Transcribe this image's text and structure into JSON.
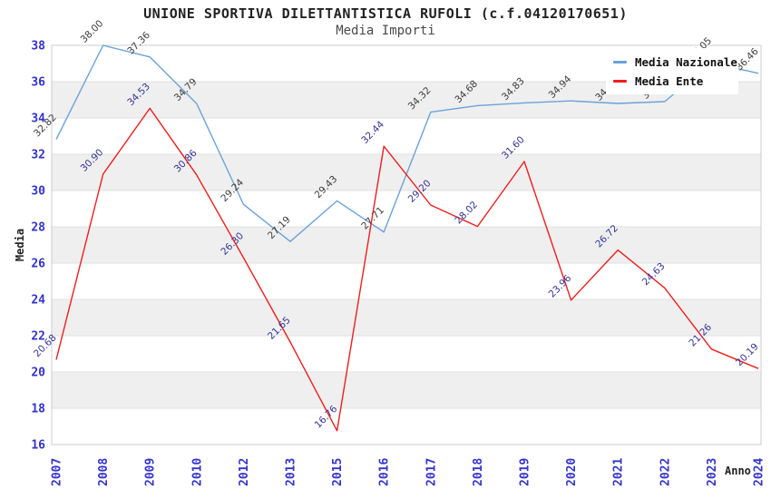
{
  "chart_data": {
    "type": "line",
    "title": "UNIONE SPORTIVA DILETTANTISTICA RUFOLI (c.f.04120170651)",
    "subtitle": "Media Importi",
    "xlabel": "Anno",
    "ylabel": "Media",
    "ylim": [
      16,
      38
    ],
    "ytick_step": 2,
    "grid": "horizontal gridlines with alternating gray bands",
    "legend_position": "top-right overlay",
    "categories": [
      "2007",
      "2008",
      "2009",
      "2010",
      "2012",
      "2013",
      "2015",
      "2016",
      "2017",
      "2018",
      "2019",
      "2020",
      "2021",
      "2022",
      "2023",
      "2024"
    ],
    "series": [
      {
        "name": "Media Nazionale",
        "color": "#6aa2d8",
        "label_color": "#3c3c3c",
        "values": [
          32.82,
          38.0,
          37.36,
          34.79,
          29.24,
          27.19,
          29.43,
          27.71,
          34.32,
          34.68,
          34.83,
          34.94,
          34.8,
          34.9,
          37.05,
          36.46
        ]
      },
      {
        "name": "Media Ente",
        "color": "#ef1e1e",
        "label_color": "#333399",
        "values": [
          20.68,
          30.9,
          34.53,
          30.86,
          26.3,
          21.65,
          16.76,
          32.44,
          29.2,
          28.02,
          31.6,
          23.96,
          26.72,
          24.63,
          21.26,
          20.19
        ]
      }
    ],
    "plot_style": {
      "band_color": "#efefef",
      "grid_color": "#e0e0e0",
      "border_color": "#cccccc",
      "tick_label_color": "#3333cc"
    }
  }
}
